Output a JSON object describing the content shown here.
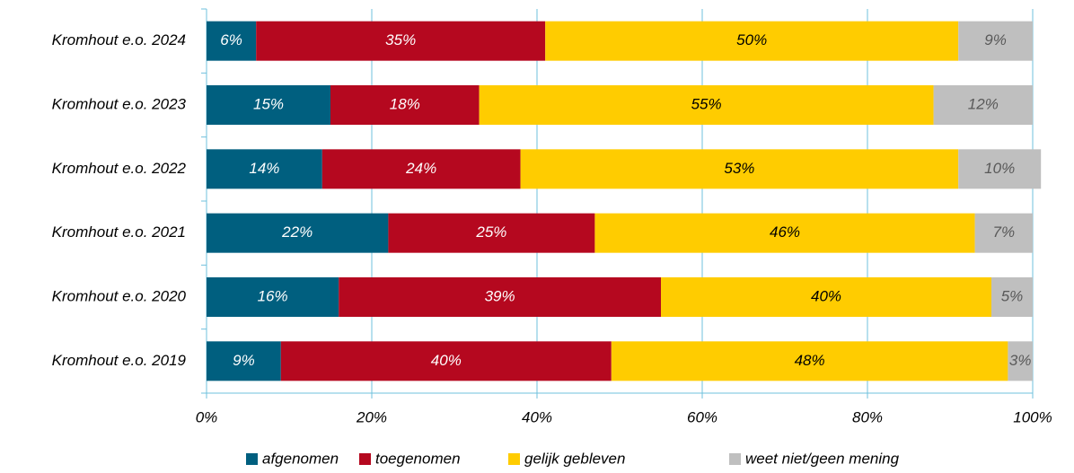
{
  "chart_data": {
    "type": "stacked-bar-horizontal",
    "categories": [
      "Kromhout e.o. 2024",
      "Kromhout e.o. 2023",
      "Kromhout e.o. 2022",
      "Kromhout e.o. 2021",
      "Kromhout e.o. 2020",
      "Kromhout e.o. 2019"
    ],
    "series": [
      {
        "name": "afgenomen",
        "color": "#005f7f",
        "values": [
          6,
          15,
          14,
          22,
          16,
          9
        ],
        "value_labels": [
          "6%",
          "15%",
          "14%",
          "22%",
          "16%",
          "9%"
        ]
      },
      {
        "name": "toegenomen",
        "color": "#b5081f",
        "values": [
          35,
          18,
          24,
          25,
          39,
          40
        ],
        "value_labels": [
          "35%",
          "18%",
          "24%",
          "25%",
          "39%",
          "40%"
        ]
      },
      {
        "name": "gelijk gebleven",
        "color": "#ffcc00",
        "values": [
          50,
          55,
          53,
          46,
          40,
          48
        ],
        "value_labels": [
          "50%",
          "55%",
          "53%",
          "46%",
          "40%",
          "48%"
        ]
      },
      {
        "name": "weet niet/geen mening",
        "color": "#bfbfbf",
        "values": [
          9,
          12,
          10,
          7,
          5,
          3
        ],
        "value_labels": [
          "9%",
          "12%",
          "10%",
          "7%",
          "5%",
          "3%"
        ]
      }
    ],
    "xlim": [
      0,
      100
    ],
    "xticks": [
      {
        "value": 0,
        "label": "0%"
      },
      {
        "value": 20,
        "label": "20%"
      },
      {
        "value": 40,
        "label": "40%"
      },
      {
        "value": 60,
        "label": "60%"
      },
      {
        "value": 80,
        "label": "80%"
      },
      {
        "value": 100,
        "label": "100%"
      }
    ],
    "grid": true,
    "legend": "bottom"
  }
}
